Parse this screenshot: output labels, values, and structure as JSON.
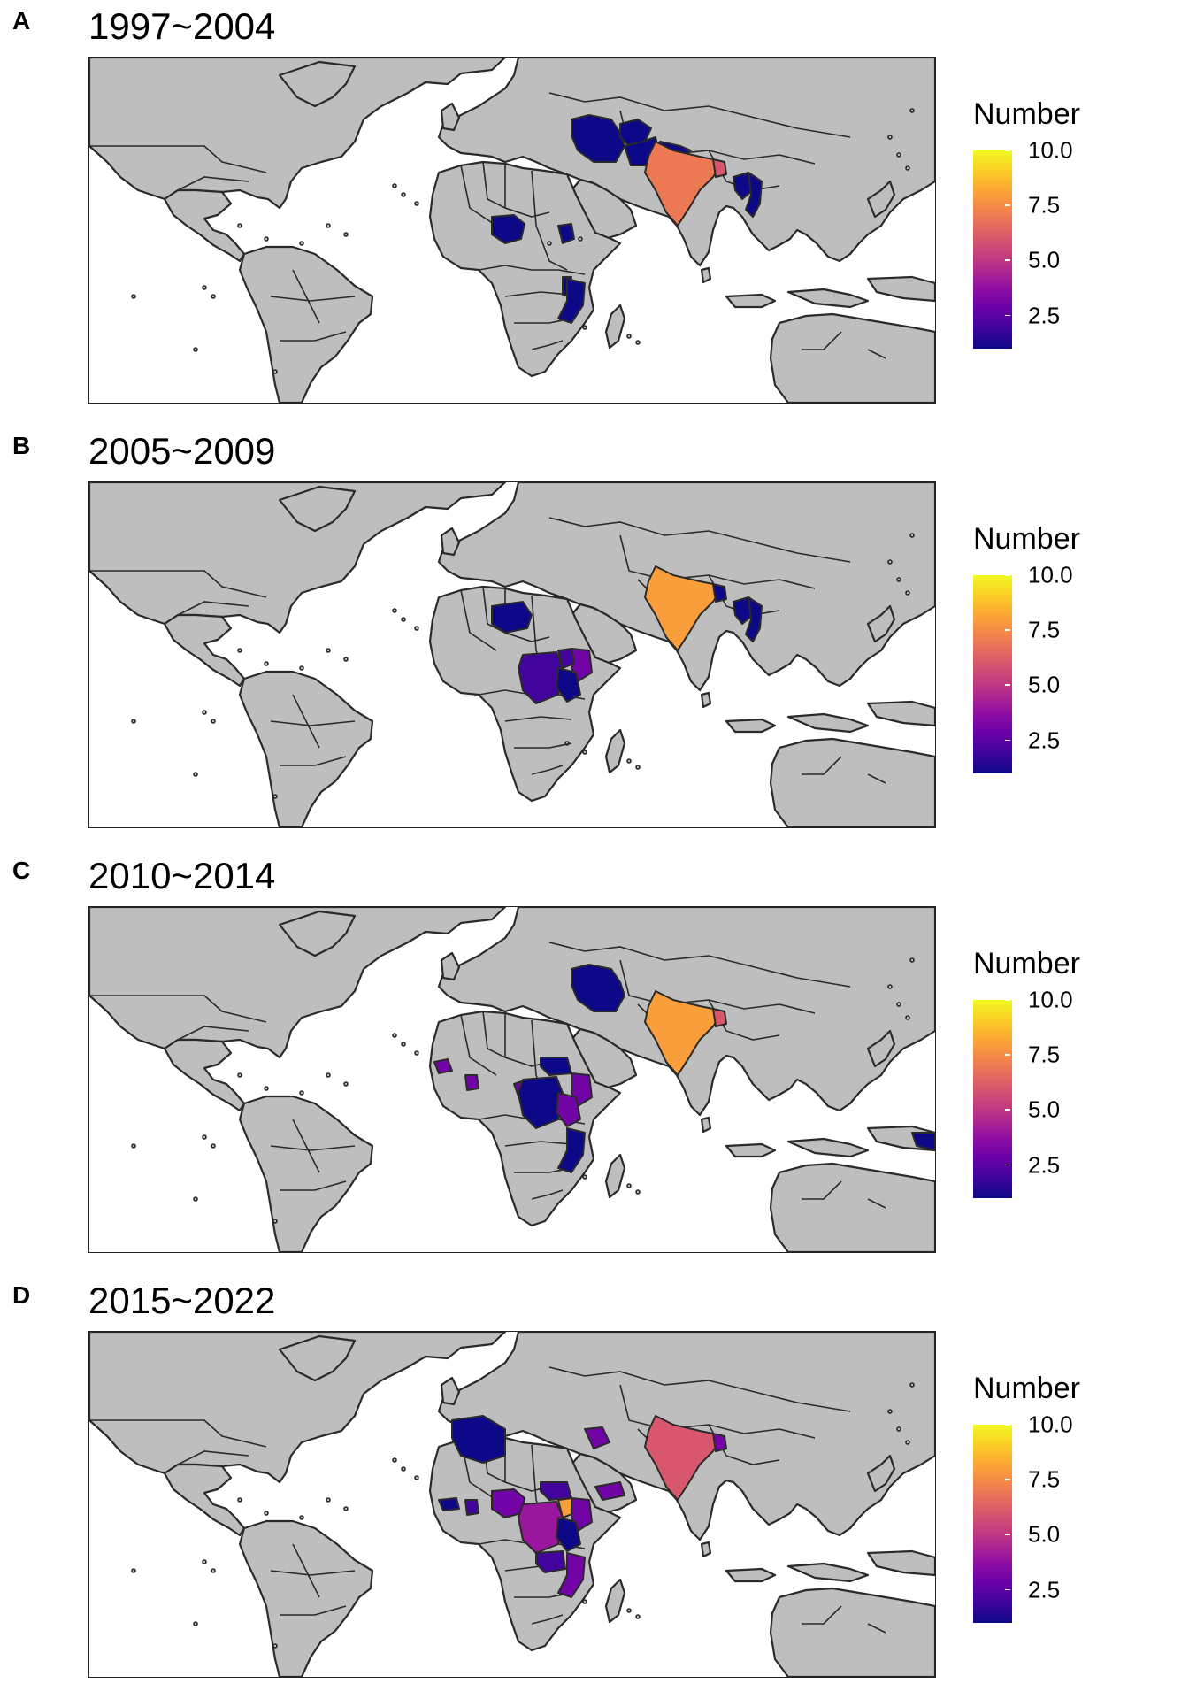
{
  "legend": {
    "title": "Number",
    "min": 1,
    "max": 10,
    "ticks": [
      "10.0",
      "7.5",
      "5.0",
      "2.5"
    ],
    "tick_values": [
      10.0,
      7.5,
      5.0,
      2.5
    ],
    "colormap": [
      "#0d0887",
      "#3e049c",
      "#6a00a8",
      "#8f0da4",
      "#b12a90",
      "#cc4778",
      "#e16462",
      "#f2844b",
      "#fca636",
      "#fcce25",
      "#f0f921"
    ]
  },
  "land_color": "#bebebe",
  "border_color": "#2a2a2a",
  "panels": [
    {
      "letter": "A",
      "title": "1997~2004",
      "countries": [
        {
          "name": "Iran",
          "value": 1
        },
        {
          "name": "Afghanistan",
          "value": 1
        },
        {
          "name": "Pakistan",
          "value": 1
        },
        {
          "name": "Nepal",
          "value": 1
        },
        {
          "name": "India",
          "value": 7
        },
        {
          "name": "Bangladesh",
          "value": 6
        },
        {
          "name": "Laos",
          "value": 1
        },
        {
          "name": "Vietnam",
          "value": 1
        },
        {
          "name": "Nigeria",
          "value": 1
        },
        {
          "name": "Uganda",
          "value": 1
        },
        {
          "name": "Malawi",
          "value": 1
        },
        {
          "name": "Mozambique",
          "value": 1
        }
      ]
    },
    {
      "letter": "B",
      "title": "2005~2009",
      "countries": [
        {
          "name": "Niger",
          "value": 1
        },
        {
          "name": "DR Congo",
          "value": 2
        },
        {
          "name": "Kenya",
          "value": 3
        },
        {
          "name": "Uganda",
          "value": 2
        },
        {
          "name": "Tanzania",
          "value": 1
        },
        {
          "name": "India",
          "value": 8
        },
        {
          "name": "Bangladesh",
          "value": 1
        },
        {
          "name": "Laos",
          "value": 1
        },
        {
          "name": "Vietnam",
          "value": 1
        }
      ]
    },
    {
      "letter": "C",
      "title": "2010~2014",
      "countries": [
        {
          "name": "Iran",
          "value": 1
        },
        {
          "name": "India",
          "value": 8
        },
        {
          "name": "Bangladesh",
          "value": 6
        },
        {
          "name": "Senegal",
          "value": 3
        },
        {
          "name": "Ghana",
          "value": 3
        },
        {
          "name": "Cameroon",
          "value": 3
        },
        {
          "name": "South Sudan",
          "value": 1
        },
        {
          "name": "DR Congo",
          "value": 1
        },
        {
          "name": "Kenya",
          "value": 3
        },
        {
          "name": "Tanzania",
          "value": 3
        },
        {
          "name": "Mozambique",
          "value": 1
        },
        {
          "name": "Papua New Guinea",
          "value": 1
        }
      ]
    },
    {
      "letter": "D",
      "title": "2015~2022",
      "countries": [
        {
          "name": "Algeria",
          "value": 1
        },
        {
          "name": "Iraq",
          "value": 3
        },
        {
          "name": "Yemen",
          "value": 3
        },
        {
          "name": "Guinea",
          "value": 1
        },
        {
          "name": "Ghana",
          "value": 2
        },
        {
          "name": "Nigeria",
          "value": 3
        },
        {
          "name": "South Sudan",
          "value": 2
        },
        {
          "name": "DR Congo",
          "value": 4
        },
        {
          "name": "Uganda",
          "value": 8
        },
        {
          "name": "Kenya",
          "value": 3
        },
        {
          "name": "Tanzania",
          "value": 1
        },
        {
          "name": "Zambia",
          "value": 2
        },
        {
          "name": "Mozambique",
          "value": 3
        },
        {
          "name": "India",
          "value": 6
        },
        {
          "name": "Bangladesh",
          "value": 3
        }
      ]
    }
  ]
}
